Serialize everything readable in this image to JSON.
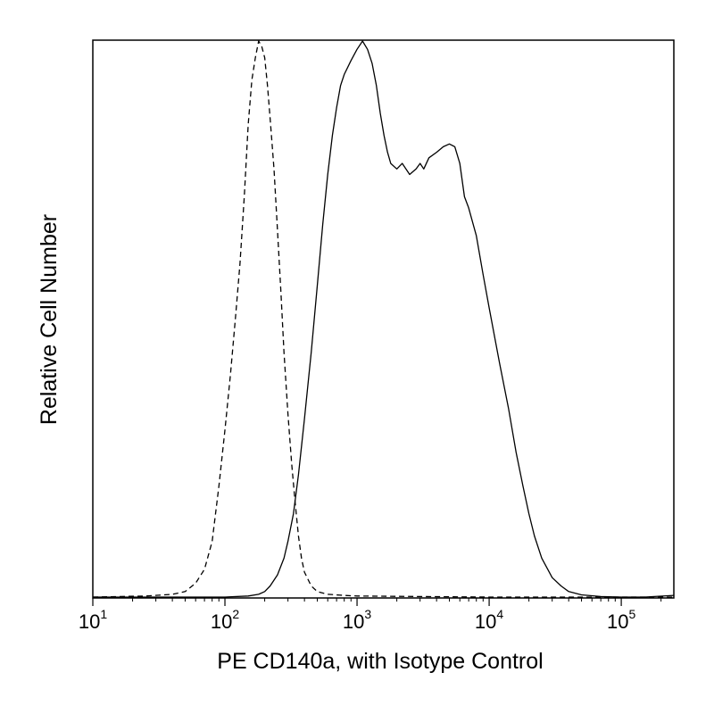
{
  "chart_data": {
    "type": "line",
    "title": "",
    "xlabel": "PE CD140a, with Isotype Control",
    "ylabel": "Relative Cell Number",
    "x_scale": "log",
    "xlim": [
      10,
      250000
    ],
    "ylim": [
      0,
      1
    ],
    "x_ticks": [
      {
        "base": "10",
        "exp": "1",
        "value": 10
      },
      {
        "base": "10",
        "exp": "2",
        "value": 100
      },
      {
        "base": "10",
        "exp": "3",
        "value": 1000
      },
      {
        "base": "10",
        "exp": "4",
        "value": 10000
      },
      {
        "base": "10",
        "exp": "5",
        "value": 100000
      }
    ],
    "grid": false,
    "legend": "none",
    "series": [
      {
        "style": "dashed",
        "color": "#000000",
        "x": [
          10,
          25,
          40,
          50,
          60,
          70,
          80,
          90,
          100,
          110,
          120,
          130,
          140,
          150,
          160,
          170,
          180,
          190,
          200,
          210,
          220,
          235,
          250,
          265,
          280,
          300,
          320,
          340,
          360,
          380,
          400,
          450,
          500,
          600,
          800,
          1000,
          3000,
          10000,
          100000,
          250000
        ],
        "y": [
          0,
          0.002,
          0.005,
          0.01,
          0.025,
          0.05,
          0.1,
          0.2,
          0.3,
          0.4,
          0.5,
          0.6,
          0.72,
          0.85,
          0.93,
          0.97,
          1.0,
          0.99,
          0.97,
          0.92,
          0.86,
          0.77,
          0.66,
          0.55,
          0.44,
          0.33,
          0.24,
          0.17,
          0.11,
          0.07,
          0.045,
          0.02,
          0.01,
          0.005,
          0.003,
          0.002,
          0.001,
          0,
          0,
          0
        ]
      },
      {
        "style": "solid",
        "color": "#000000",
        "x": [
          10,
          100,
          150,
          180,
          200,
          220,
          250,
          280,
          300,
          330,
          360,
          400,
          450,
          500,
          550,
          600,
          650,
          700,
          750,
          800,
          900,
          1000,
          1100,
          1200,
          1300,
          1400,
          1500,
          1600,
          1700,
          1800,
          2000,
          2200,
          2500,
          2800,
          3000,
          3200,
          3500,
          4000,
          4500,
          5000,
          5500,
          6000,
          6500,
          7000,
          8000,
          9000,
          10000,
          12000,
          14000,
          16000,
          18000,
          20000,
          22000,
          25000,
          30000,
          35000,
          40000,
          50000,
          70000,
          100000,
          150000,
          250000
        ],
        "y": [
          0,
          0,
          0.002,
          0.005,
          0.01,
          0.02,
          0.04,
          0.07,
          0.1,
          0.15,
          0.22,
          0.32,
          0.44,
          0.56,
          0.67,
          0.76,
          0.83,
          0.88,
          0.92,
          0.94,
          0.965,
          0.985,
          1.0,
          0.985,
          0.96,
          0.92,
          0.87,
          0.83,
          0.8,
          0.78,
          0.77,
          0.78,
          0.76,
          0.77,
          0.78,
          0.77,
          0.79,
          0.8,
          0.81,
          0.815,
          0.81,
          0.78,
          0.72,
          0.7,
          0.65,
          0.58,
          0.52,
          0.42,
          0.34,
          0.26,
          0.2,
          0.15,
          0.11,
          0.07,
          0.035,
          0.02,
          0.01,
          0.004,
          0.001,
          0,
          0,
          0.003
        ]
      }
    ]
  }
}
